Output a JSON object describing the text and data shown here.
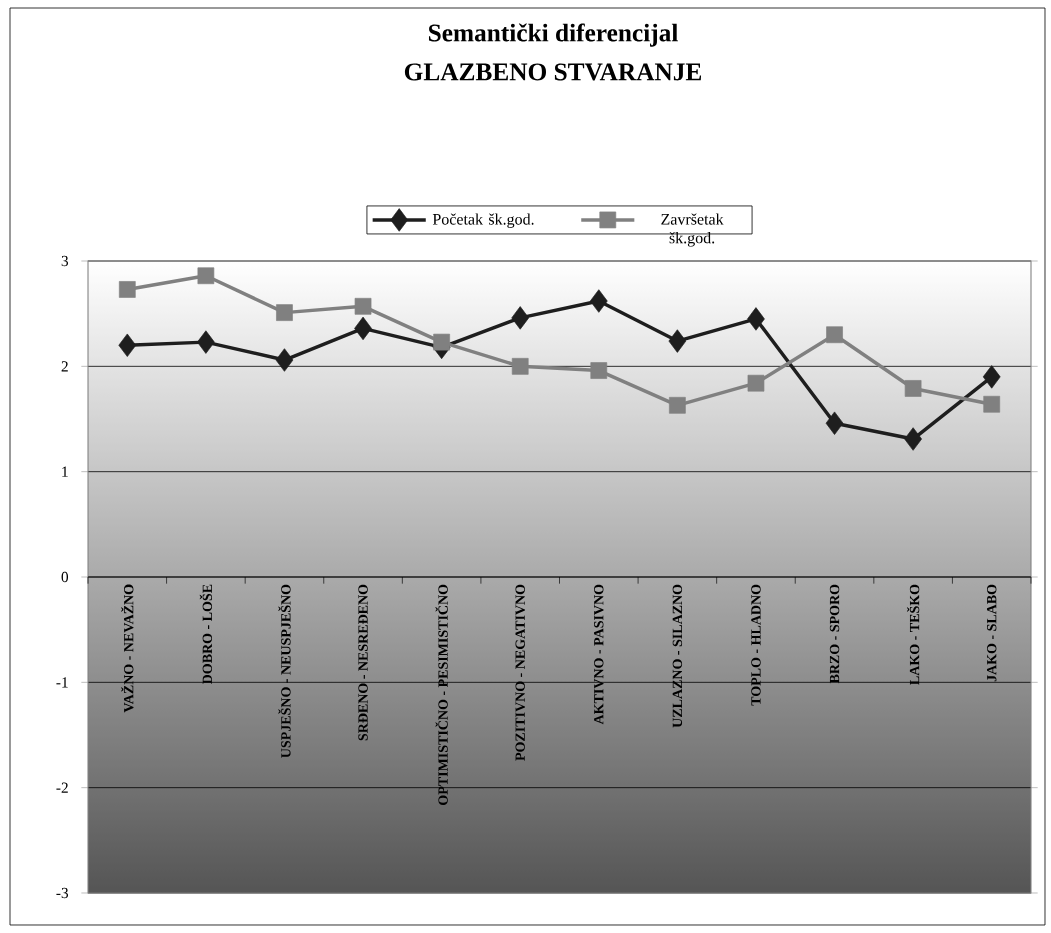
{
  "chart_data": {
    "type": "line",
    "title": "Semantički diferencijal",
    "subtitle": "GLAZBENO STVARANJE",
    "categories": [
      "VAŽNO - NEVAŽNO",
      "DOBRO - LOŠE",
      "USPJEŠNO - NEUSPJEŠNO",
      "SRĐENO - NESREĐENO",
      "OPTIMISTIČNO - PESIMISTIČNO",
      "POZITIVNO - NEGATIVNO",
      "AKTIVNO - PASIVNO",
      "UZLAZNO - SILAZNO",
      "TOPLO - HLADNO",
      "BRZO - SPORO",
      "LAKO - TEŠKO",
      "JAKO - SLABO"
    ],
    "series": [
      {
        "name": "Početak šk.god.",
        "color": "#1e1e1e",
        "marker": "diamond",
        "values": [
          2.2,
          2.23,
          2.06,
          2.36,
          2.18,
          2.46,
          2.62,
          2.24,
          2.45,
          1.46,
          1.31,
          1.9
        ]
      },
      {
        "name": "Završetak šk.god.",
        "color": "#808080",
        "marker": "square",
        "values": [
          2.73,
          2.86,
          2.51,
          2.57,
          2.23,
          2.0,
          1.96,
          1.63,
          1.84,
          2.3,
          1.79,
          1.64
        ]
      }
    ],
    "ylim": [
      -3,
      3
    ],
    "yticks": [
      -3,
      -2,
      -1,
      0,
      1,
      2,
      3
    ],
    "grid": "y",
    "legend": "top"
  }
}
